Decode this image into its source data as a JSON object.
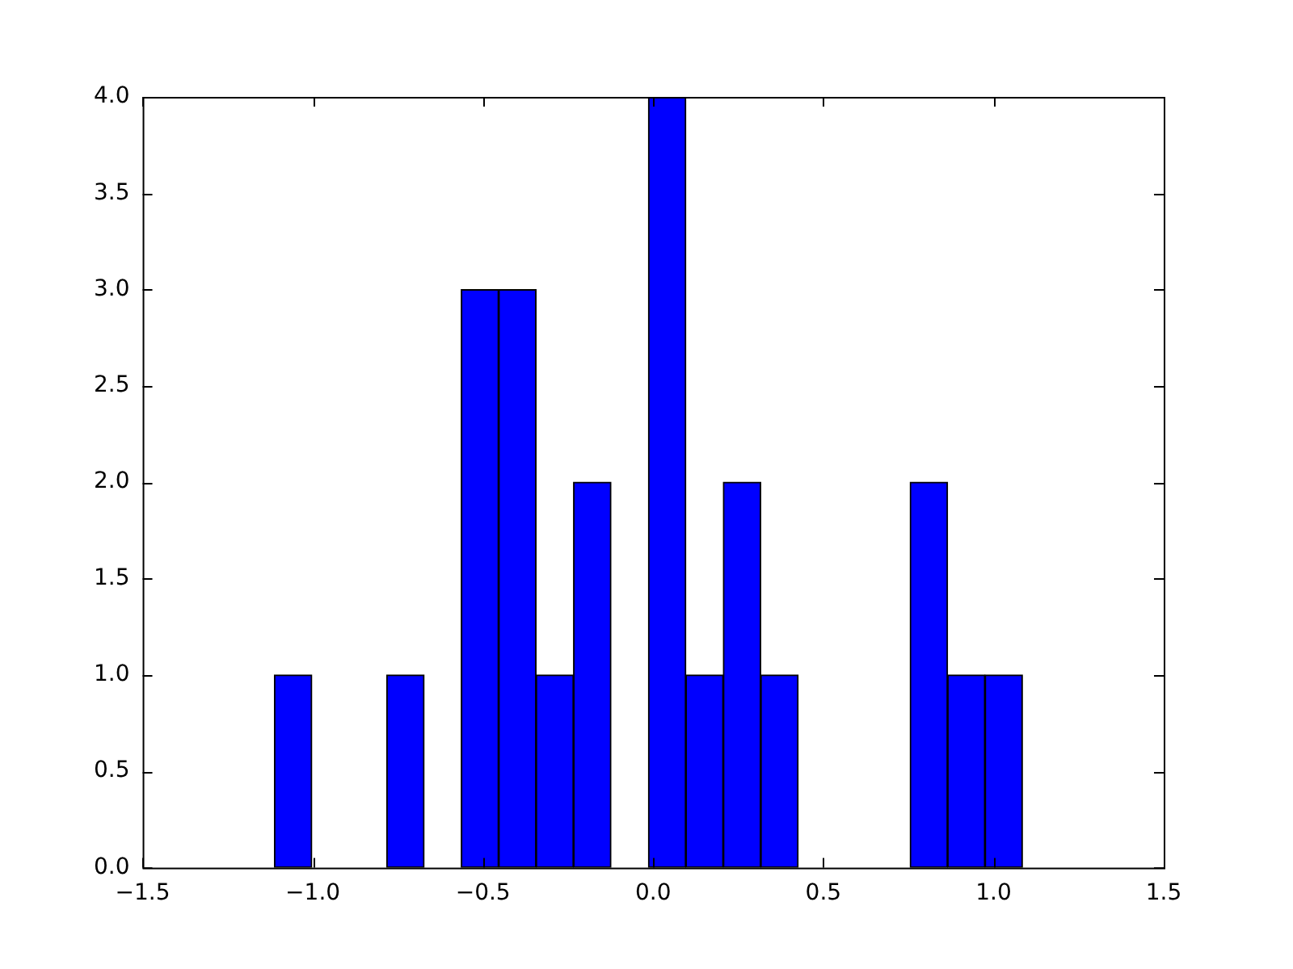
{
  "chart_data": {
    "type": "histogram",
    "color": "#0000ff",
    "bins": [
      -1.113,
      -1.003,
      -0.893,
      -0.783,
      -0.673,
      -0.564,
      -0.454,
      -0.344,
      -0.234,
      -0.124,
      -0.014,
      0.096,
      0.206,
      0.316,
      0.426,
      0.535,
      0.645,
      0.755,
      0.865,
      0.975,
      1.085
    ],
    "values": [
      1,
      0,
      0,
      1,
      0,
      3,
      3,
      1,
      2,
      0,
      4,
      1,
      2,
      1,
      0,
      0,
      0,
      2,
      1,
      1
    ],
    "xlim": [
      -1.5,
      1.5
    ],
    "xticks": [
      {
        "value": -1.5,
        "label": "−1.5"
      },
      {
        "value": -1,
        "label": "−1.0"
      },
      {
        "value": -0.5,
        "label": "−0.5"
      },
      {
        "value": 0,
        "label": "0.0"
      },
      {
        "value": 0.5,
        "label": "0.5"
      },
      {
        "value": 1,
        "label": "1.0"
      },
      {
        "value": 1.5,
        "label": "1.5"
      }
    ],
    "ylim": [
      0,
      4
    ],
    "yticks": [
      {
        "value": 0,
        "label": "0.0"
      },
      {
        "value": 0.5,
        "label": "0.5"
      },
      {
        "value": 1,
        "label": "1.0"
      },
      {
        "value": 1.5,
        "label": "1.5"
      },
      {
        "value": 2,
        "label": "2.0"
      },
      {
        "value": 2.5,
        "label": "2.5"
      },
      {
        "value": 3,
        "label": "3.0"
      },
      {
        "value": 3.5,
        "label": "3.5"
      },
      {
        "value": 4,
        "label": "4.0"
      }
    ],
    "grid": false
  }
}
